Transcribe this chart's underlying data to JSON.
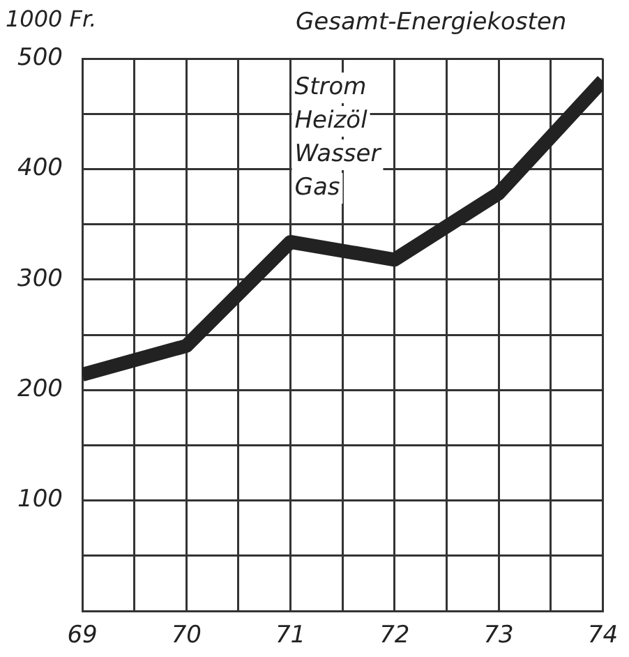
{
  "chart_data": {
    "type": "line",
    "title": "Gesamt-Energiekosten",
    "ylabel": "1000 Fr.",
    "x": [
      69,
      70,
      71,
      72,
      73,
      74
    ],
    "series": [
      {
        "color": "#222222",
        "values": [
          214,
          240,
          334,
          318,
          378,
          480
        ]
      }
    ],
    "xlim": [
      69,
      74
    ],
    "xticks": [
      69,
      {
        "value": 69.5,
        "label": null
      },
      70,
      {
        "value": 70.5,
        "label": null
      },
      71,
      {
        "value": 71.5,
        "label": null
      },
      72,
      {
        "value": 72.5,
        "label": null
      },
      73,
      {
        "value": 73.5,
        "label": null
      },
      74
    ],
    "ylim": [
      0,
      500
    ],
    "yticks": [
      {
        "value": 0,
        "label": null
      },
      {
        "value": 50,
        "label": null
      },
      100,
      {
        "value": 150,
        "label": null
      },
      200,
      {
        "value": 250,
        "label": null
      },
      300,
      {
        "value": 350,
        "label": null
      },
      400,
      {
        "value": 450,
        "label": null
      },
      500
    ],
    "annotations": [
      "Strom",
      "Heizöl",
      "Wasser",
      "Gas"
    ],
    "grid": true,
    "legend": false,
    "marker": "none",
    "line_style": "solid"
  }
}
